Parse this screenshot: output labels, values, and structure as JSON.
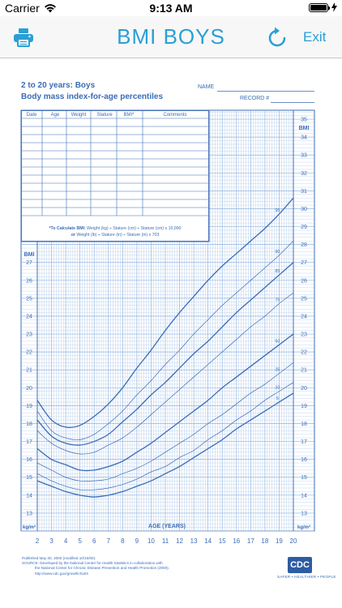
{
  "status_bar": {
    "carrier": "Carrier",
    "time": "9:13 AM"
  },
  "nav": {
    "title": "BMI BOYS",
    "exit_label": "Exit",
    "print_icon": "printer-icon",
    "refresh_icon": "refresh-icon",
    "accent_color": "#2a9fd6"
  },
  "chart_header": {
    "title_line1": "2 to 20 years: Boys",
    "title_line2": "Body mass index-for-age percentiles",
    "name_label": "NAME",
    "record_label": "RECORD #"
  },
  "record_table": {
    "columns": [
      "Date",
      "Age",
      "Weight",
      "Stature",
      "BMI*",
      "Comments"
    ],
    "calc_note_bold": "*To Calculate BMI:",
    "calc_note_line1": "Weight (kg) ÷ Stature (cm) ÷ Stature (cm) x 10,000",
    "calc_note_line2_bold": "or",
    "calc_note_line2": "Weight (lb) ÷ Stature (in) ÷ Stature (in) x 703"
  },
  "footer": {
    "line1": "Published May 30, 2000 (modified 10/16/00).",
    "line2": "SOURCE: Developed by the National Center for Health Statistics in collaboration with",
    "line3": "the National Center for Chronic Disease Prevention and Health Promotion (2000).",
    "line4": "http://www.cdc.gov/growthcharts",
    "logo": "CDC",
    "tagline": "SAFER • HEALTHIER • PEOPLE"
  },
  "chart_data": {
    "type": "line",
    "title": "Body mass index-for-age percentiles",
    "xlabel": "AGE (YEARS)",
    "ylabel": "BMI",
    "y_unit": "kg/m²",
    "xlim": [
      2,
      20
    ],
    "ylim": [
      12,
      35
    ],
    "x_ticks": [
      2,
      3,
      4,
      5,
      6,
      7,
      8,
      9,
      10,
      11,
      12,
      13,
      14,
      15,
      16,
      17,
      18,
      19,
      20
    ],
    "y_ticks_left": [
      13,
      14,
      15,
      16,
      17,
      18,
      19,
      20,
      21,
      22,
      23,
      24,
      25,
      26,
      27
    ],
    "y_ticks_right": [
      13,
      14,
      15,
      16,
      17,
      18,
      19,
      20,
      21,
      22,
      23,
      24,
      25,
      26,
      27,
      28,
      29,
      30,
      31,
      32,
      33,
      34,
      35
    ],
    "grid": true,
    "x": [
      2,
      3,
      4,
      5,
      6,
      7,
      8,
      9,
      10,
      11,
      12,
      13,
      14,
      15,
      16,
      17,
      18,
      19,
      20
    ],
    "series": [
      {
        "name": "95",
        "values": [
          19.3,
          18.2,
          17.8,
          17.9,
          18.4,
          19.1,
          20.0,
          21.1,
          22.1,
          23.2,
          24.2,
          25.1,
          26.0,
          26.8,
          27.5,
          28.2,
          28.9,
          29.7,
          30.6
        ]
      },
      {
        "name": "90",
        "values": [
          18.7,
          17.6,
          17.2,
          17.1,
          17.4,
          18.0,
          18.7,
          19.6,
          20.4,
          21.3,
          22.1,
          23.0,
          23.8,
          24.6,
          25.3,
          26.0,
          26.7,
          27.4,
          28.2
        ]
      },
      {
        "name": "85",
        "values": [
          18.2,
          17.3,
          16.9,
          16.8,
          17.0,
          17.4,
          18.1,
          18.8,
          19.6,
          20.3,
          21.1,
          21.9,
          22.6,
          23.4,
          24.2,
          24.9,
          25.6,
          26.3,
          27.0
        ]
      },
      {
        "name": "75",
        "values": [
          17.6,
          16.9,
          16.5,
          16.3,
          16.4,
          16.8,
          17.2,
          17.8,
          18.5,
          19.2,
          19.9,
          20.6,
          21.3,
          22.0,
          22.7,
          23.4,
          24.0,
          24.7,
          25.3
        ]
      },
      {
        "name": "50",
        "values": [
          16.6,
          16.0,
          15.7,
          15.4,
          15.4,
          15.6,
          15.9,
          16.4,
          16.9,
          17.5,
          18.1,
          18.7,
          19.3,
          20.0,
          20.6,
          21.2,
          21.8,
          22.4,
          23.0
        ]
      },
      {
        "name": "25",
        "values": [
          15.8,
          15.4,
          15.0,
          14.8,
          14.8,
          14.9,
          15.2,
          15.5,
          15.9,
          16.4,
          16.9,
          17.4,
          18.0,
          18.5,
          19.1,
          19.7,
          20.2,
          20.8,
          21.4
        ]
      },
      {
        "name": "10",
        "values": [
          15.2,
          14.8,
          14.5,
          14.3,
          14.3,
          14.4,
          14.6,
          14.9,
          15.3,
          15.6,
          16.1,
          16.5,
          17.1,
          17.6,
          18.2,
          18.7,
          19.3,
          19.8,
          20.3
        ]
      },
      {
        "name": "5",
        "values": [
          14.8,
          14.5,
          14.2,
          14.0,
          13.9,
          14.0,
          14.2,
          14.5,
          14.8,
          15.2,
          15.6,
          16.1,
          16.6,
          17.1,
          17.7,
          18.2,
          18.7,
          19.2,
          19.7
        ]
      }
    ],
    "line_color": "#3b6cb7",
    "grid_color": "#8fb3e0"
  }
}
